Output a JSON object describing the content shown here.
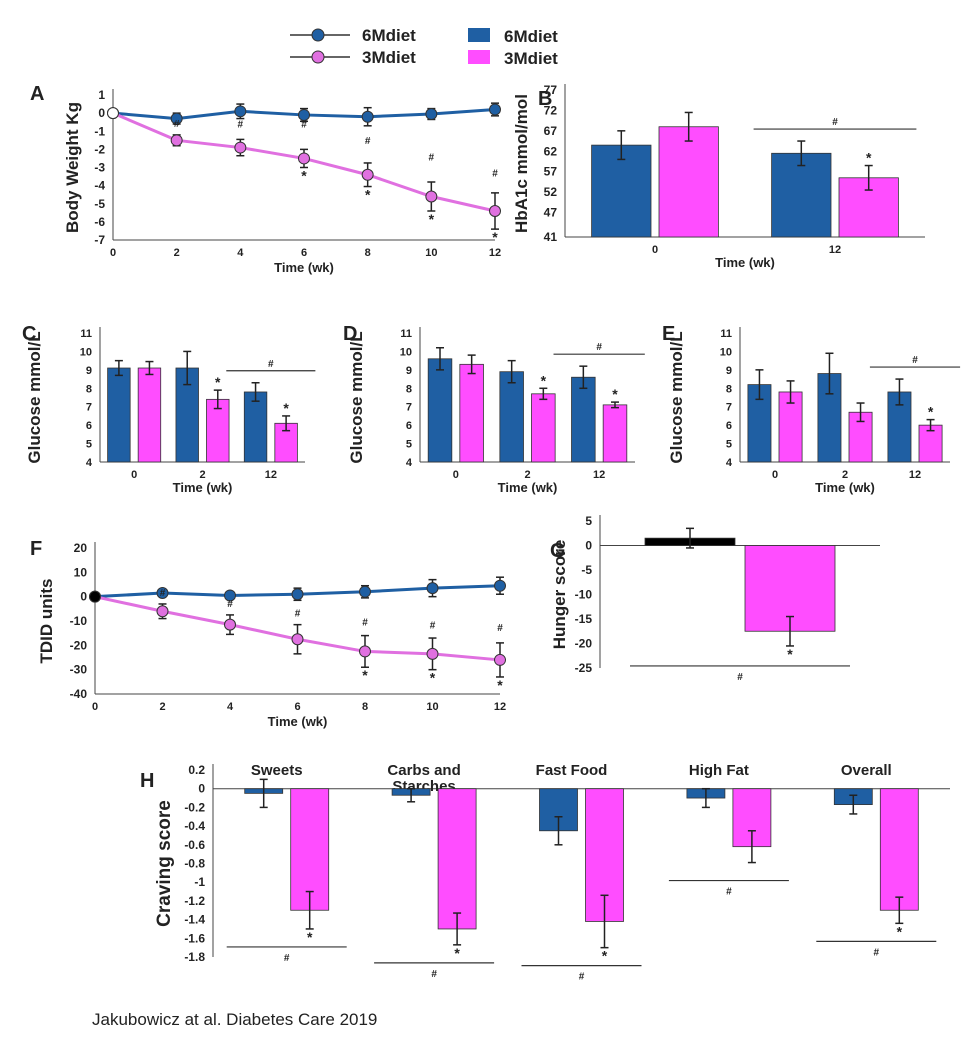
{
  "colors": {
    "series_6M": "#1f5fa3",
    "series_3M": "#ff4dff",
    "line_3M": "#e070e0",
    "control_G": "#000000"
  },
  "legend": {
    "line_items": [
      {
        "label": "6Mdiet",
        "color": "#1f5fa3"
      },
      {
        "label": "3Mdiet",
        "color": "#e070e0"
      }
    ],
    "bar_items": [
      {
        "label": "6Mdiet",
        "color": "#1f5fa3"
      },
      {
        "label": "3Mdiet",
        "color": "#ff4dff"
      }
    ]
  },
  "citation": "Jakubowicz at al. Diabetes Care  2019",
  "chart_data": [
    {
      "id": "A",
      "panel_label": "A",
      "type": "line",
      "ylabel": "Body Weight  Kg",
      "xlabel": "Time (wk)",
      "x": [
        0,
        2,
        4,
        6,
        8,
        10,
        12
      ],
      "ylim": [
        -7,
        1
      ],
      "yticks": [
        1,
        0,
        -1,
        -2,
        -3,
        -4,
        -5,
        -6,
        -7
      ],
      "series": [
        {
          "name": "6Mdiet",
          "values": [
            0,
            -0.3,
            0.1,
            -0.1,
            -0.2,
            -0.05,
            0.2
          ],
          "errors": [
            0,
            0.3,
            0.4,
            0.35,
            0.5,
            0.3,
            0.35
          ]
        },
        {
          "name": "3Mdiet",
          "values": [
            0,
            -1.5,
            -1.9,
            -2.5,
            -3.4,
            -4.6,
            -5.4
          ],
          "errors": [
            0,
            0.3,
            0.45,
            0.5,
            0.65,
            0.8,
            1.0
          ]
        }
      ],
      "hash_at": [
        2,
        4,
        6,
        8,
        10,
        12
      ],
      "star_at": [
        6,
        8,
        10,
        12
      ]
    },
    {
      "id": "B",
      "panel_label": "B",
      "type": "bar",
      "ylabel": "HbA1c mmol/mol",
      "xlabel": "Time (wk)",
      "categories": [
        "0",
        "12"
      ],
      "ylim": [
        41,
        77
      ],
      "yticks": [
        77,
        72,
        67,
        62,
        57,
        52,
        47,
        41
      ],
      "series": [
        {
          "name": "6Mdiet",
          "values": [
            63.5,
            61.5
          ],
          "errors": [
            3.5,
            3
          ]
        },
        {
          "name": "3Mdiet",
          "values": [
            68,
            55.5
          ],
          "errors": [
            3.5,
            3
          ]
        }
      ],
      "star_groups": [
        1
      ],
      "hash_groups": [
        1
      ]
    },
    {
      "id": "C",
      "panel_label": "C",
      "type": "bar",
      "ylabel": "Glucose mmol/L",
      "xlabel": "Time (wk)",
      "categories": [
        "0",
        "2",
        "12"
      ],
      "ylim": [
        4,
        11
      ],
      "yticks": [
        11,
        10,
        9,
        8,
        7,
        6,
        5,
        4
      ],
      "series": [
        {
          "name": "6Mdiet",
          "values": [
            9.1,
            9.1,
            7.8
          ],
          "errors": [
            0.4,
            0.9,
            0.5
          ]
        },
        {
          "name": "3Mdiet",
          "values": [
            9.1,
            7.4,
            6.1
          ],
          "errors": [
            0.35,
            0.5,
            0.4
          ]
        }
      ],
      "star_groups": [
        1,
        2
      ],
      "hash_groups": [
        2
      ]
    },
    {
      "id": "D",
      "panel_label": "D",
      "type": "bar",
      "ylabel": "Glucose mmol/L",
      "xlabel": "Time (wk)",
      "categories": [
        "0",
        "2",
        "12"
      ],
      "ylim": [
        4,
        11
      ],
      "yticks": [
        11,
        10,
        9,
        8,
        7,
        6,
        5,
        4
      ],
      "series": [
        {
          "name": "6Mdiet",
          "values": [
            9.6,
            8.9,
            8.6
          ],
          "errors": [
            0.6,
            0.6,
            0.6
          ]
        },
        {
          "name": "3Mdiet",
          "values": [
            9.3,
            7.7,
            7.1
          ],
          "errors": [
            0.5,
            0.3,
            0.15
          ]
        }
      ],
      "star_groups": [
        1,
        2
      ],
      "hash_groups": [
        2
      ]
    },
    {
      "id": "E",
      "panel_label": "E",
      "type": "bar",
      "ylabel": "Glucose mmol/L",
      "xlabel": "Time (wk)",
      "categories": [
        "0",
        "2",
        "12"
      ],
      "ylim": [
        4,
        11
      ],
      "yticks": [
        11,
        10,
        9,
        8,
        7,
        6,
        5,
        4
      ],
      "series": [
        {
          "name": "6Mdiet",
          "values": [
            8.2,
            8.8,
            7.8
          ],
          "errors": [
            0.8,
            1.1,
            0.7
          ]
        },
        {
          "name": "3Mdiet",
          "values": [
            7.8,
            6.7,
            6.0
          ],
          "errors": [
            0.6,
            0.5,
            0.3
          ]
        }
      ],
      "star_groups": [
        2
      ],
      "hash_groups": [
        2
      ]
    },
    {
      "id": "F",
      "panel_label": "F",
      "type": "line",
      "ylabel": "TDID  units",
      "xlabel": "Time (wk)",
      "x": [
        0,
        2,
        4,
        6,
        8,
        10,
        12
      ],
      "ylim": [
        -40,
        20
      ],
      "yticks": [
        20,
        10,
        0,
        -10,
        -20,
        -30,
        -40
      ],
      "series": [
        {
          "name": "6Mdiet",
          "values": [
            0,
            1.5,
            0.5,
            1,
            2,
            3.5,
            4.5
          ],
          "errors": [
            0,
            1.5,
            1.5,
            2.5,
            2.5,
            3.5,
            3.5
          ]
        },
        {
          "name": "3Mdiet",
          "values": [
            0,
            -6,
            -11.5,
            -17.5,
            -22.5,
            -23.5,
            -26
          ],
          "errors": [
            0,
            3,
            4,
            6,
            6.5,
            6.5,
            7
          ]
        }
      ],
      "hash_at": [
        2,
        4,
        6,
        8,
        10,
        12
      ],
      "star_at": [
        8,
        10,
        12
      ]
    },
    {
      "id": "G",
      "panel_label": "G",
      "type": "bar",
      "ylabel": "Hunger score",
      "xlabel": "",
      "categories": [
        ""
      ],
      "ylim": [
        -25,
        5
      ],
      "yticks": [
        5,
        0,
        -5,
        -10,
        -15,
        -20,
        -25
      ],
      "series": [
        {
          "name": "6Mdiet",
          "values": [
            1.5
          ],
          "errors": [
            2
          ],
          "color": "#000000"
        },
        {
          "name": "3Mdiet",
          "values": [
            -17.5
          ],
          "errors": [
            3
          ]
        }
      ],
      "star_groups": [
        0
      ],
      "hash_groups": [
        0
      ]
    },
    {
      "id": "H",
      "panel_label": "H",
      "type": "bar",
      "ylabel": "Craving score",
      "xlabel": "",
      "categories": [
        "Sweets",
        "Carbs and Starches",
        "Fast Food",
        "High Fat",
        "Overall"
      ],
      "ylim": [
        -1.8,
        0.2
      ],
      "yticks": [
        0.2,
        0,
        -0.2,
        -0.4,
        -0.6,
        -0.8,
        -1,
        -1.2,
        -1.4,
        -1.6,
        -1.8
      ],
      "series": [
        {
          "name": "6Mdiet",
          "values": [
            -0.05,
            -0.07,
            -0.45,
            -0.1,
            -0.17
          ],
          "errors": [
            0.15,
            0.07,
            0.15,
            0.1,
            0.1
          ]
        },
        {
          "name": "3Mdiet",
          "values": [
            -1.3,
            -1.5,
            -1.42,
            -0.62,
            -1.3
          ],
          "errors": [
            0.2,
            0.17,
            0.28,
            0.17,
            0.14
          ]
        }
      ],
      "star_groups": [
        0,
        1,
        2,
        4
      ],
      "hash_groups": [
        0,
        1,
        2,
        3,
        4
      ]
    }
  ]
}
